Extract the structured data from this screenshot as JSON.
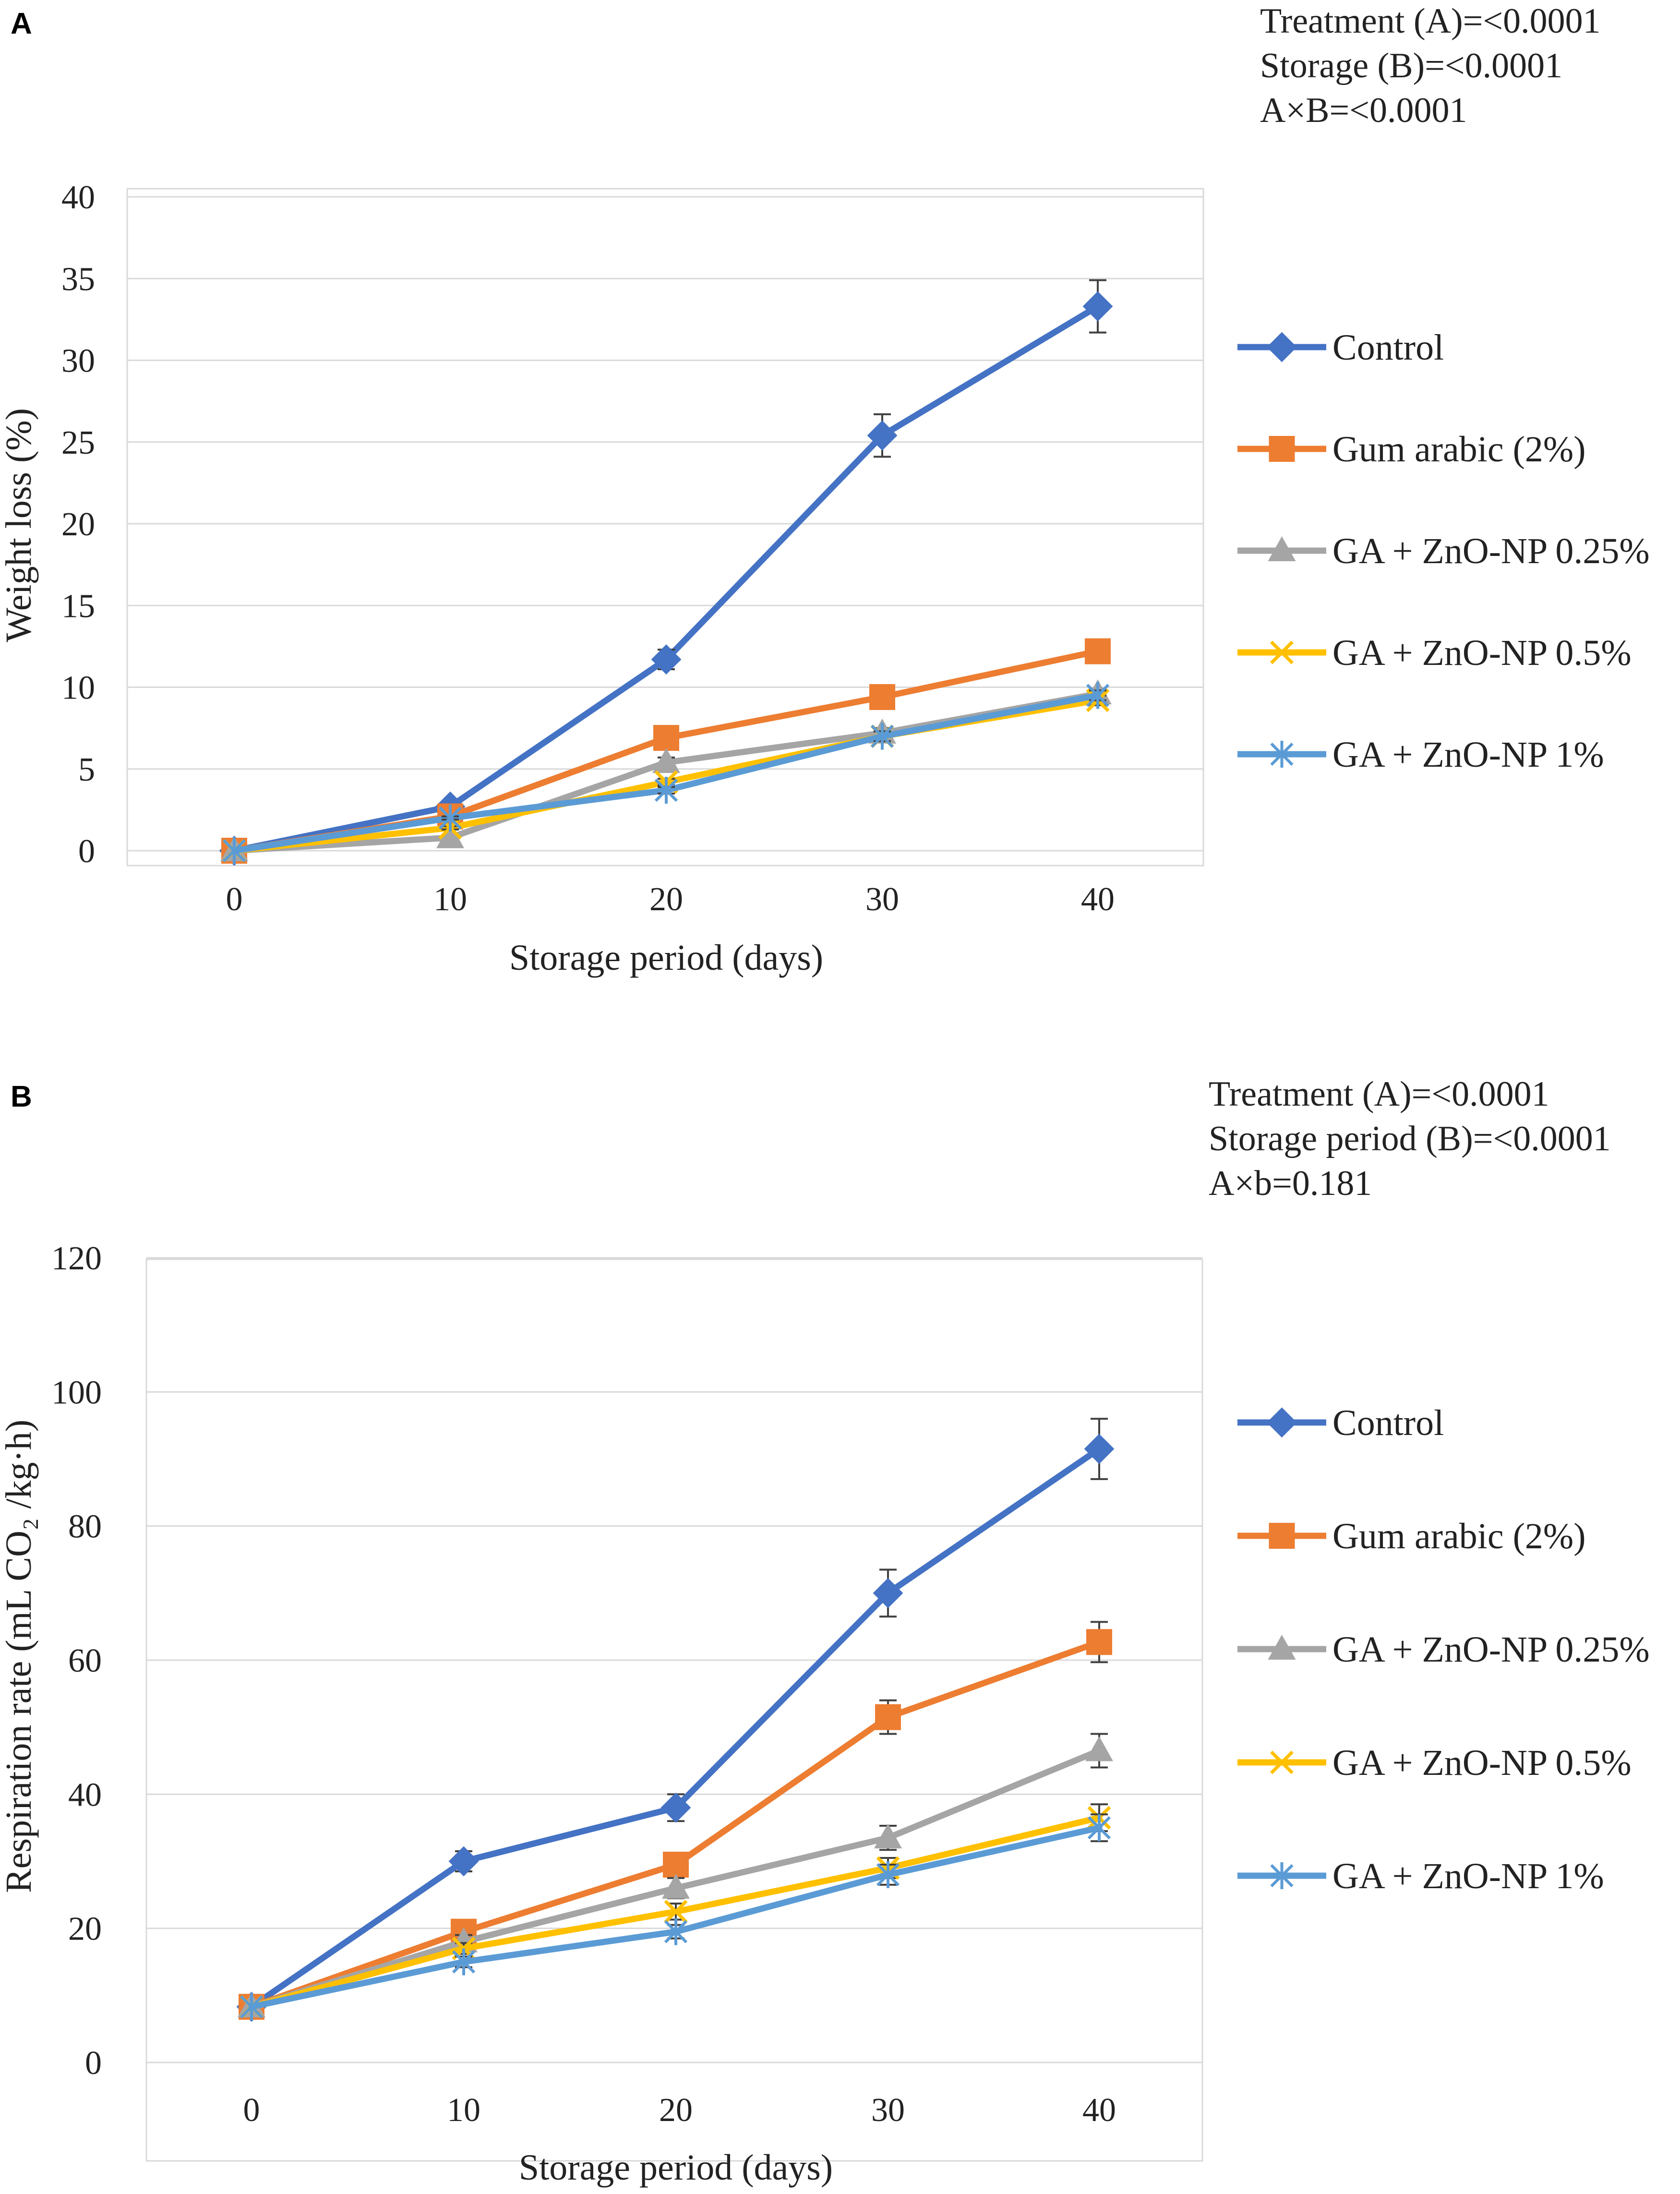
{
  "chart_data": [
    {
      "panel": "A",
      "type": "line",
      "stats": [
        "Treatment (A)=<0.0001",
        "Storage (B)=<0.0001",
        "A×B=<0.0001"
      ],
      "xlabel": "Storage period (days)",
      "ylabel": "Weight loss (%)",
      "x": [
        0,
        10,
        20,
        30,
        40
      ],
      "xticks": [
        "0",
        "10",
        "20",
        "30",
        "40"
      ],
      "ylim": [
        0,
        40
      ],
      "yticks": [
        0,
        5,
        10,
        15,
        20,
        25,
        30,
        35,
        40
      ],
      "grid": true,
      "legend_position": "right",
      "series": [
        {
          "name": "Control",
          "values": [
            0,
            2.7,
            11.7,
            25.4,
            33.3
          ],
          "errors": [
            0,
            0.2,
            0.6,
            1.3,
            1.6
          ]
        },
        {
          "name": "Gum arabic (2%)",
          "values": [
            0,
            2.1,
            6.9,
            9.4,
            12.2
          ],
          "errors": [
            0,
            0.2,
            0.3,
            0.3,
            0.3
          ]
        },
        {
          "name": "GA + ZnO-NP 0.25%",
          "values": [
            0,
            0.8,
            5.4,
            7.2,
            9.6
          ],
          "errors": [
            0,
            0.1,
            0.3,
            0.3,
            0.3
          ]
        },
        {
          "name": "GA + ZnO-NP 0.5%",
          "values": [
            0,
            1.4,
            4.2,
            7.0,
            9.2
          ],
          "errors": [
            0,
            0.1,
            0.2,
            0.3,
            0.3
          ]
        },
        {
          "name": "GA + ZnO-NP 1%",
          "values": [
            0,
            2.0,
            3.7,
            7.0,
            9.5
          ],
          "errors": [
            0,
            0.1,
            0.2,
            0.3,
            0.3
          ]
        }
      ]
    },
    {
      "panel": "B",
      "type": "line",
      "stats": [
        "Treatment (A)=<0.0001",
        "Storage period (B)=<0.0001",
        "A×b=0.181"
      ],
      "xlabel": "Storage period (days)",
      "ylabel": "Respiration rate (mL CO₂ /kg·h)",
      "x": [
        0,
        10,
        20,
        30,
        40
      ],
      "xticks": [
        "0",
        "10",
        "20",
        "30",
        "40"
      ],
      "ylim": [
        0,
        120
      ],
      "yticks": [
        0,
        20,
        40,
        60,
        80,
        100,
        120
      ],
      "grid": true,
      "legend_position": "right",
      "series": [
        {
          "name": "Control",
          "values": [
            8.3,
            30.0,
            38.0,
            70.0,
            91.5
          ],
          "errors": [
            0,
            1.5,
            2.0,
            3.5,
            4.5
          ]
        },
        {
          "name": "Gum arabic (2%)",
          "values": [
            8.3,
            19.5,
            29.5,
            51.5,
            62.7
          ],
          "errors": [
            0,
            1.0,
            1.5,
            2.5,
            3.0
          ]
        },
        {
          "name": "GA + ZnO-NP 0.25%",
          "values": [
            8.3,
            18.0,
            26.0,
            33.5,
            46.5
          ],
          "errors": [
            0,
            1.0,
            1.5,
            1.8,
            2.5
          ]
        },
        {
          "name": "GA + ZnO-NP 0.5%",
          "values": [
            8.3,
            17.0,
            22.5,
            29.0,
            36.5
          ],
          "errors": [
            0,
            0.8,
            1.2,
            1.5,
            2.0
          ]
        },
        {
          "name": "GA + ZnO-NP 1%",
          "values": [
            8.3,
            15.0,
            19.5,
            28.0,
            35.0
          ],
          "errors": [
            0,
            0.8,
            1.0,
            1.5,
            2.0
          ]
        }
      ]
    }
  ],
  "colors": [
    "#4472C4",
    "#ED7D31",
    "#A5A5A5",
    "#FFC000",
    "#5B9BD5"
  ],
  "markers": [
    "diamond-icon",
    "square-icon",
    "triangle-icon",
    "x-icon",
    "asterisk-icon"
  ]
}
